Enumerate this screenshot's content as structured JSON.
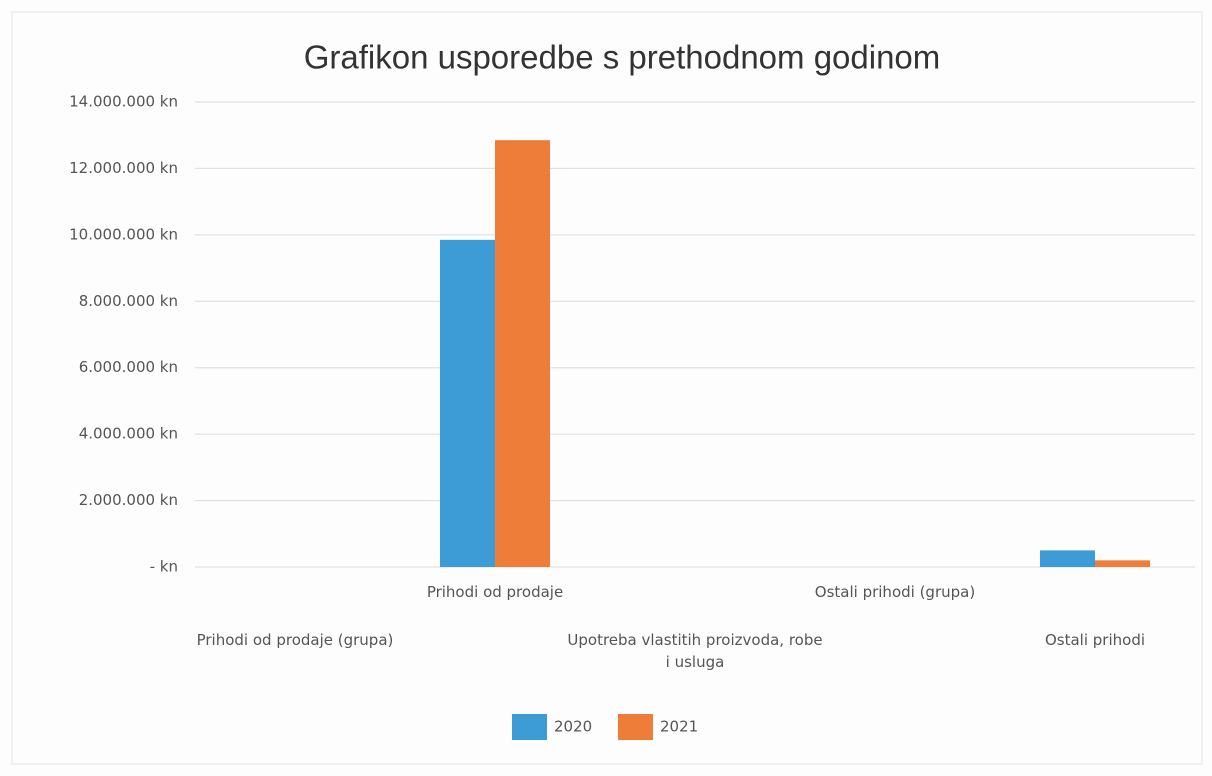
{
  "chart_data": {
    "type": "bar",
    "title": "Grafikon usporedbe s prethodnom godinom",
    "categories": [
      "Prihodi od prodaje (grupa)",
      "Prihodi od prodaje",
      "Upotreba vlastitih proizvoda, robe i usluga",
      "Ostali prihodi (grupa)",
      "Ostali prihodi"
    ],
    "series": [
      {
        "name": "2020",
        "color": "#3d9bd6",
        "values": [
          0,
          9850000,
          0,
          0,
          500000
        ]
      },
      {
        "name": "2021",
        "color": "#ee7d3a",
        "values": [
          0,
          12850000,
          0,
          0,
          200000
        ]
      }
    ],
    "ylim": [
      0,
      14000000
    ],
    "yticks": [
      {
        "value": 0,
        "label": "- kn"
      },
      {
        "value": 2000000,
        "label": "2.000.000 kn"
      },
      {
        "value": 4000000,
        "label": "4.000.000 kn"
      },
      {
        "value": 6000000,
        "label": "6.000.000 kn"
      },
      {
        "value": 8000000,
        "label": "8.000.000 kn"
      },
      {
        "value": 10000000,
        "label": "10.000.000 kn"
      },
      {
        "value": 12000000,
        "label": "12.000.000 kn"
      },
      {
        "value": 14000000,
        "label": "14.000.000 kn"
      }
    ],
    "grid": true,
    "legend": "bottom"
  }
}
